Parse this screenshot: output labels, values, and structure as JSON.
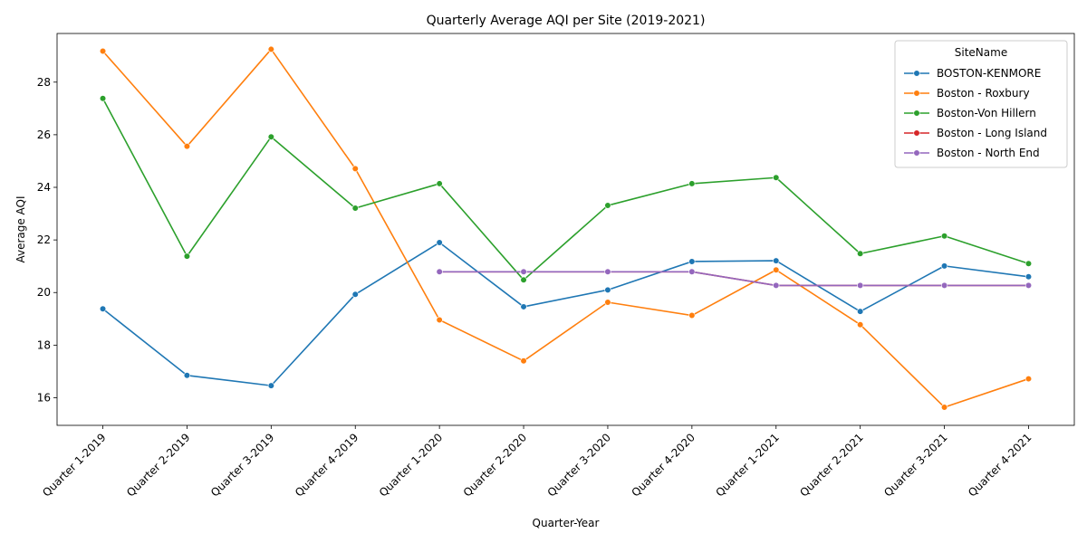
{
  "chart_data": {
    "type": "line",
    "title": "Quarterly Average AQI per Site (2019-2021)",
    "xlabel": "Quarter-Year",
    "ylabel": "Average AQI",
    "ylim": [
      14.95,
      29.85
    ],
    "yticks": [
      16,
      18,
      20,
      22,
      24,
      26,
      28
    ],
    "grid": false,
    "legend_title": "SiteName",
    "legend_position": "top-right",
    "categories": [
      "Quarter 1-2019",
      "Quarter 2-2019",
      "Quarter 3-2019",
      "Quarter 4-2019",
      "Quarter 1-2020",
      "Quarter 2-2020",
      "Quarter 3-2020",
      "Quarter 4-2020",
      "Quarter 1-2021",
      "Quarter 2-2021",
      "Quarter 3-2021",
      "Quarter 4-2021"
    ],
    "series": [
      {
        "name": "BOSTON-KENMORE",
        "color": "#1f77b4",
        "values": [
          19.38,
          16.85,
          16.46,
          19.93,
          21.9,
          19.46,
          20.1,
          21.18,
          21.21,
          19.28,
          21.01,
          20.6
        ]
      },
      {
        "name": "Boston - Roxbury",
        "color": "#ff7f0e",
        "values": [
          29.18,
          25.56,
          29.25,
          24.71,
          18.96,
          17.4,
          19.63,
          19.13,
          20.86,
          18.78,
          15.64,
          16.72
        ]
      },
      {
        "name": "Boston-Von Hillern",
        "color": "#2ca02c",
        "values": [
          27.38,
          21.38,
          25.92,
          23.21,
          24.14,
          20.48,
          23.31,
          24.14,
          24.37,
          21.48,
          22.15,
          21.1
        ]
      },
      {
        "name": "Boston - Long Island",
        "color": "#d62728",
        "values": [
          null,
          null,
          null,
          null,
          20.79,
          20.79,
          20.79,
          20.79,
          20.27,
          20.27,
          20.27,
          20.27
        ]
      },
      {
        "name": "Boston - North End",
        "color": "#9467bd",
        "values": [
          null,
          null,
          null,
          null,
          20.79,
          20.79,
          20.79,
          20.79,
          20.27,
          20.27,
          20.27,
          20.27
        ]
      }
    ]
  }
}
